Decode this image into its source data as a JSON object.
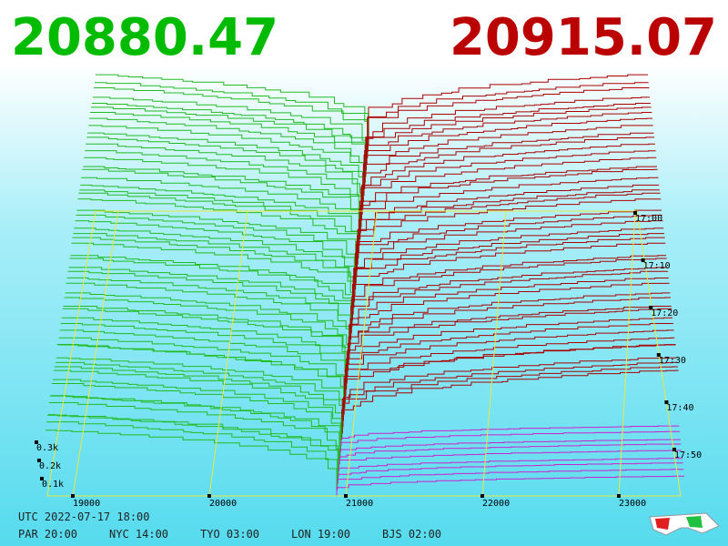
{
  "bid_price": "20880.47",
  "ask_price": "20915.07",
  "price_axis": [
    "19000",
    "20000",
    "21000",
    "22000",
    "23000"
  ],
  "time_axis": [
    "17:00",
    "17:10",
    "17:20",
    "17:30",
    "17:40",
    "17:50"
  ],
  "volume_axis": [
    "0.3k",
    "0.2k",
    "0.1k"
  ],
  "footer": {
    "utc": "UTC 2022-07-17 18:00",
    "clocks": [
      "PAR 20:00",
      "NYC 14:00",
      "TYO 03:00",
      "LON 19:00",
      "BJS 02:00"
    ]
  }
}
